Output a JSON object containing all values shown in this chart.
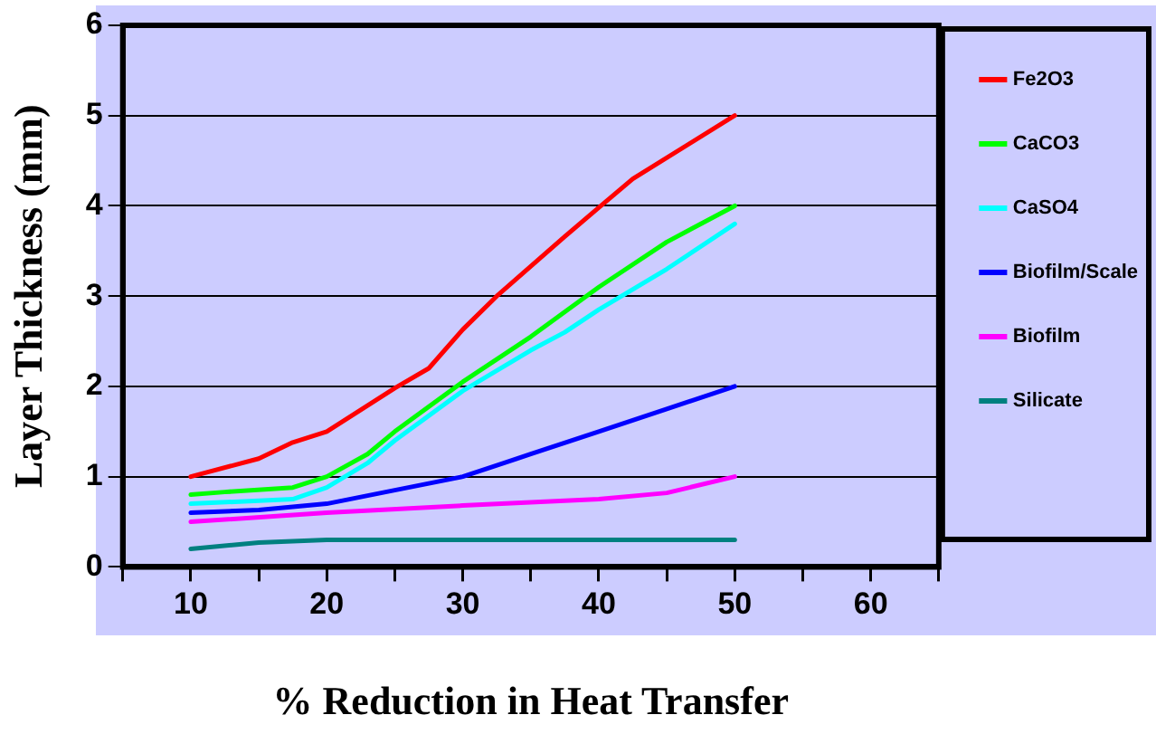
{
  "chart_data": {
    "type": "line",
    "xlabel": "% Reduction in Heat Transfer",
    "ylabel": "Layer Thickness (mm)",
    "xlim": [
      5,
      65
    ],
    "xticks": [
      {
        "value": 5,
        "label": null
      },
      10,
      {
        "value": 15,
        "label": null
      },
      20,
      {
        "value": 25,
        "label": null
      },
      30,
      {
        "value": 35,
        "label": null
      },
      40,
      {
        "value": 45,
        "label": null
      },
      50,
      {
        "value": 55,
        "label": null
      },
      60,
      {
        "value": 65,
        "label": null
      }
    ],
    "ylim": [
      0,
      6
    ],
    "yticks": [
      0,
      1,
      2,
      3,
      4,
      5,
      6
    ],
    "grid": "y",
    "legend": "right",
    "marker": "none",
    "line_style": "solid",
    "series": [
      {
        "name": "Fe2O3",
        "color": "#ff0000",
        "x": [
          10,
          15,
          17.5,
          20,
          25,
          27.5,
          30,
          32.5,
          37.5,
          40,
          42.5,
          50
        ],
        "values": [
          1.0,
          1.2,
          1.38,
          1.5,
          1.98,
          2.2,
          2.63,
          3.0,
          3.66,
          3.98,
          4.3,
          5.0
        ]
      },
      {
        "name": "CaCO3",
        "color": "#00ff00",
        "x": [
          10,
          12.5,
          17.5,
          20,
          23,
          25,
          30,
          35,
          40,
          45,
          50
        ],
        "values": [
          0.8,
          0.83,
          0.88,
          1.0,
          1.25,
          1.5,
          2.05,
          2.55,
          3.1,
          3.6,
          4.0
        ]
      },
      {
        "name": "CaSO4",
        "color": "#00ffff",
        "x": [
          10,
          17.5,
          20,
          23,
          25,
          30,
          35,
          37.5,
          40,
          45,
          50
        ],
        "values": [
          0.7,
          0.75,
          0.88,
          1.15,
          1.4,
          1.95,
          2.4,
          2.6,
          2.85,
          3.3,
          3.8
        ]
      },
      {
        "name": "Biofilm/Scale",
        "color": "#0000ff",
        "x": [
          10,
          15,
          20,
          25,
          30,
          35,
          40,
          45,
          50
        ],
        "values": [
          0.6,
          0.63,
          0.7,
          0.85,
          1.0,
          1.25,
          1.5,
          1.75,
          2.0
        ]
      },
      {
        "name": "Biofilm",
        "color": "#ff00ff",
        "x": [
          10,
          20,
          30,
          40,
          45,
          50
        ],
        "values": [
          0.5,
          0.6,
          0.68,
          0.75,
          0.82,
          1.0
        ]
      },
      {
        "name": "Silicate",
        "color": "#008080",
        "x": [
          10,
          15,
          20,
          50
        ],
        "values": [
          0.2,
          0.27,
          0.3,
          0.3
        ]
      }
    ]
  }
}
